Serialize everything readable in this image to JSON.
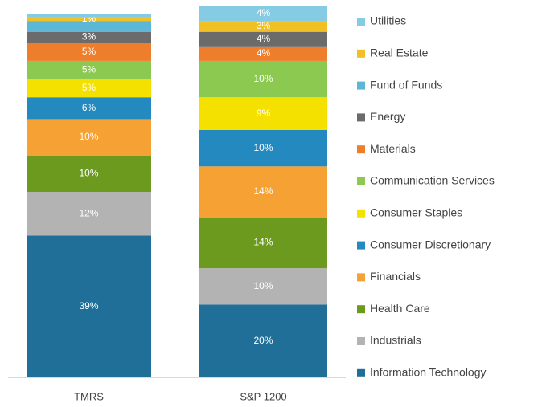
{
  "chart_data": {
    "type": "stacked_bar",
    "categories": [
      "TMRS",
      "S&P 1200"
    ],
    "series": [
      {
        "name": "Information Technology",
        "color": "#1f6f99",
        "values": [
          39,
          20
        ],
        "value_labels": [
          "39%",
          "20%"
        ]
      },
      {
        "name": "Industrials",
        "color": "#b3b3b3",
        "values": [
          12,
          10
        ],
        "value_labels": [
          "12%",
          "10%"
        ]
      },
      {
        "name": "Health Care",
        "color": "#6b9a1e",
        "values": [
          10,
          14
        ],
        "value_labels": [
          "10%",
          "14%"
        ]
      },
      {
        "name": "Financials",
        "color": "#f5a133",
        "values": [
          10,
          14
        ],
        "value_labels": [
          "10%",
          "14%"
        ]
      },
      {
        "name": "Consumer Discretionary",
        "color": "#2389bf",
        "values": [
          6,
          10
        ],
        "value_labels": [
          "6%",
          "10%"
        ]
      },
      {
        "name": "Consumer Staples",
        "color": "#f5e100",
        "values": [
          5,
          9
        ],
        "value_labels": [
          "5%",
          "9%"
        ]
      },
      {
        "name": "Communication Services",
        "color": "#8cc951",
        "values": [
          5,
          10
        ],
        "value_labels": [
          "5%",
          "10%"
        ]
      },
      {
        "name": "Materials",
        "color": "#ee7e2c",
        "values": [
          5,
          4
        ],
        "value_labels": [
          "5%",
          "4%"
        ]
      },
      {
        "name": "Energy",
        "color": "#6b6b6b",
        "values": [
          3,
          4
        ],
        "value_labels": [
          "3%",
          "4%"
        ]
      },
      {
        "name": "Fund of Funds",
        "color": "#5cb6d6",
        "values": [
          3,
          0
        ],
        "value_labels": [
          null,
          null
        ]
      },
      {
        "name": "Real Estate",
        "color": "#f0c024",
        "values": [
          1,
          3
        ],
        "value_labels": [
          "1%",
          "3%"
        ]
      },
      {
        "name": "Utilities",
        "color": "#86cbe4",
        "values": [
          1,
          4
        ],
        "value_labels": [
          null,
          "4%"
        ]
      }
    ]
  }
}
